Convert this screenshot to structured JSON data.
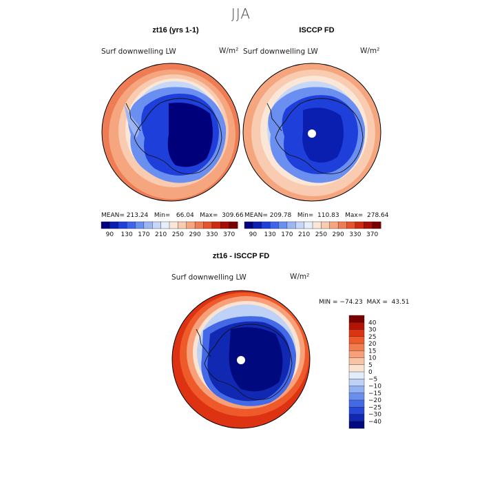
{
  "title": "JJA",
  "panels": [
    {
      "id": "model",
      "title": "zt16 (yrs 1-1)",
      "variable": "Surf downwelling LW",
      "units": "W/m²",
      "stats": {
        "mean": "213.24",
        "min": "66.04",
        "max": "309.66"
      },
      "stats_text": "MEAN= 213.24   Min=   66.04   Max=  309.66"
    },
    {
      "id": "obs",
      "title": "ISCCP FD",
      "variable": "Surf downwelling LW",
      "units": "W/m²",
      "stats": {
        "mean": "209.78",
        "min": "110.83",
        "max": "278.64"
      },
      "stats_text": "MEAN= 209.78   Min=  110.83   Max=  278.64"
    },
    {
      "id": "diff",
      "title": "zt16 - ISCCP FD",
      "variable": "Surf downwelling LW",
      "units": "W/m²",
      "stats_text": "MIN = −74.23  MAX =  43.51"
    }
  ],
  "colorbar_abs": {
    "levels": [
      "90",
      "130",
      "170",
      "210",
      "250",
      "290",
      "330",
      "370"
    ],
    "colors": [
      "#00007a",
      "#0a1fb0",
      "#1e3fd9",
      "#3d64ea",
      "#6b8ff0",
      "#9bb5f5",
      "#c6d7f8",
      "#e6eefb",
      "#fbe7d8",
      "#f9cbb0",
      "#f5a67f",
      "#ee7d55",
      "#e4542f",
      "#cc2b12",
      "#a60f05",
      "#7a0000"
    ]
  },
  "colorbar_diff": {
    "levels": [
      "40",
      "30",
      "25",
      "20",
      "15",
      "10",
      "5",
      "0",
      "−5",
      "−10",
      "−15",
      "−20",
      "−25",
      "−30",
      "−40"
    ],
    "colors": [
      "#7a0000",
      "#b31204",
      "#dd3312",
      "#ee5a2a",
      "#f57c4c",
      "#f8a07a",
      "#f9c3a6",
      "#fbe3d2",
      "#e3ecfa",
      "#bed1f6",
      "#93b0f2",
      "#6a8eee",
      "#4369e7",
      "#2747d6",
      "#1128b3",
      "#00097e"
    ]
  }
}
